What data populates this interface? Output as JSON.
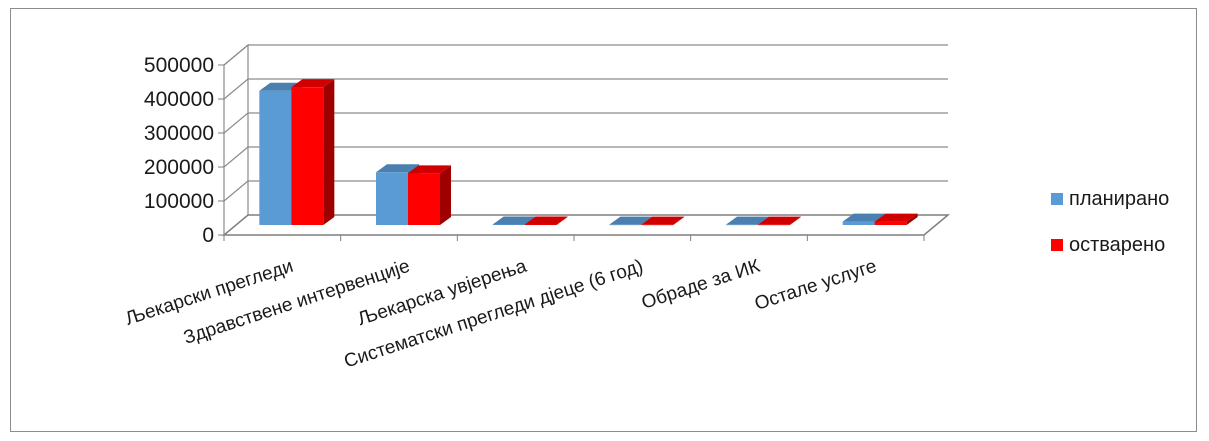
{
  "chart_data": {
    "type": "bar",
    "title": "",
    "xlabel": "",
    "ylabel": "",
    "ylim": [
      0,
      500000
    ],
    "yticks": [
      0,
      100000,
      200000,
      300000,
      400000,
      500000
    ],
    "ytick_labels": [
      "0",
      "100000",
      "200000",
      "300000",
      "400000",
      "500000"
    ],
    "grid": true,
    "three_d": true,
    "legend_position": "right",
    "categories": [
      "Љекарски прегледи",
      "Здравствене интервенције",
      "Љекарска увјерења",
      "Систематски прегледи дјеце (6 год)",
      "Обраде за ИК",
      "Остале услуге"
    ],
    "series": [
      {
        "name": "планирано",
        "color": "#5b9bd5",
        "values": [
          395000,
          155000,
          1500,
          1000,
          1000,
          10000
        ]
      },
      {
        "name": "остварено",
        "color": "#ff0000",
        "values": [
          405000,
          152000,
          1500,
          1000,
          1000,
          10000
        ]
      }
    ]
  }
}
